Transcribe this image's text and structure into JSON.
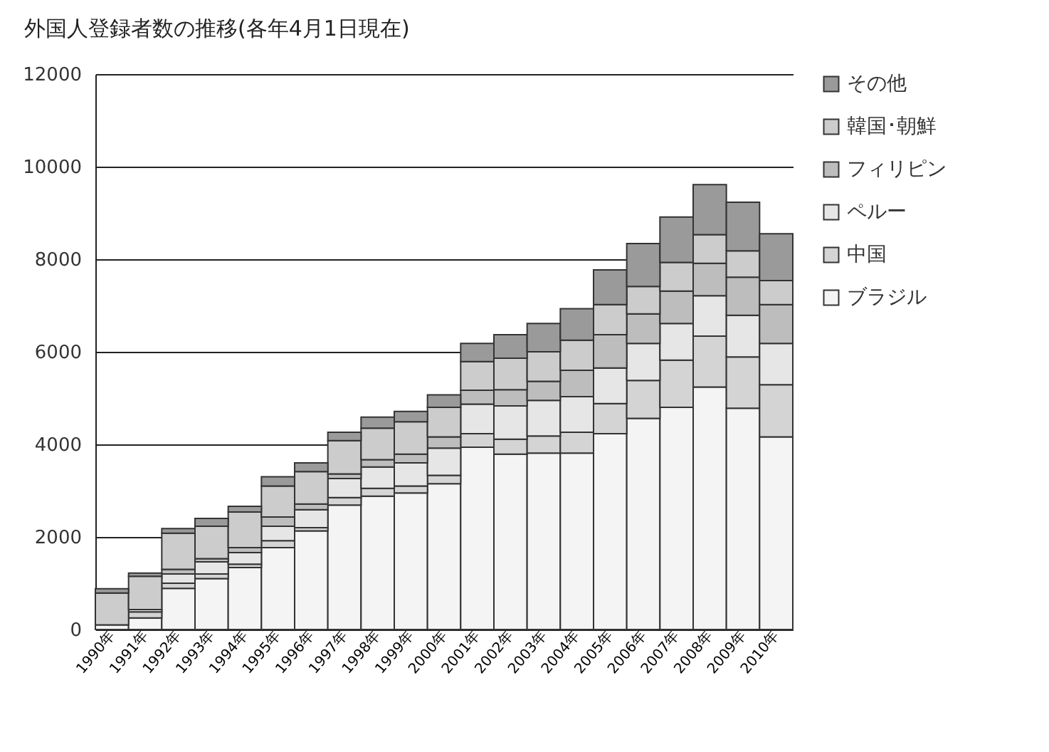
{
  "chart_data": {
    "type": "bar",
    "title": "外国人登録者数の推移(各年4月1日現在)",
    "categories": [
      "1990年",
      "1991年",
      "1992年",
      "1993年",
      "1994年",
      "1995年",
      "1996年",
      "1997年",
      "1998年",
      "1999年",
      "2000年",
      "2001年",
      "2002年",
      "2003年",
      "2004年",
      "2005年",
      "2006年",
      "2007年",
      "2008年",
      "2009年",
      "2010年"
    ],
    "stacked": true,
    "series": [
      {
        "name": "ブラジル",
        "color": "#f4f4f4",
        "values": [
          100,
          250,
          890,
          1100,
          1340,
          1770,
          2130,
          2690,
          2880,
          2950,
          3150,
          3940,
          3790,
          3810,
          3810,
          4230,
          4560,
          4800,
          5240,
          4780,
          4160
        ]
      },
      {
        "name": "中国",
        "color": "#d4d4d4",
        "values": [
          null,
          130,
          110,
          100,
          70,
          150,
          70,
          160,
          170,
          150,
          180,
          290,
          320,
          370,
          450,
          650,
          820,
          1020,
          1100,
          1110,
          1130
        ]
      },
      {
        "name": "ペルー",
        "color": "#e6e6e6",
        "values": [
          null,
          50,
          200,
          260,
          250,
          310,
          390,
          410,
          460,
          500,
          590,
          640,
          720,
          770,
          770,
          770,
          800,
          790,
          870,
          900,
          890
        ]
      },
      {
        "name": "フィリピン",
        "color": "#bdbdbd",
        "values": [
          null,
          null,
          100,
          70,
          110,
          200,
          120,
          100,
          160,
          190,
          240,
          300,
          350,
          410,
          570,
          720,
          640,
          700,
          700,
          820,
          840
        ]
      },
      {
        "name": "韓国･朝鮮",
        "color": "#cccccc",
        "values": [
          690,
          720,
          780,
          700,
          770,
          670,
          700,
          720,
          680,
          700,
          640,
          620,
          680,
          640,
          650,
          650,
          590,
          620,
          620,
          570,
          520
        ]
      },
      {
        "name": "その他",
        "color": "#9a9a9a",
        "values": [
          90,
          70,
          100,
          170,
          120,
          200,
          190,
          180,
          240,
          220,
          270,
          390,
          510,
          610,
          680,
          750,
          930,
          980,
          1080,
          1050,
          1010
        ]
      }
    ],
    "ylim": [
      0,
      12000
    ],
    "yticks": [
      0,
      2000,
      4000,
      6000,
      8000,
      10000,
      12000
    ],
    "grid": "y",
    "legend": "right"
  }
}
